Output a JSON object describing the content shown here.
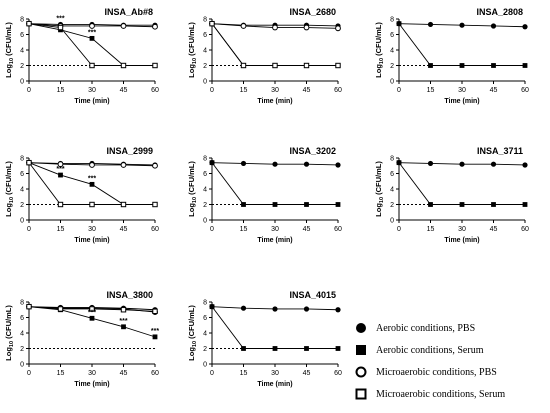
{
  "chart_data": [
    {
      "type": "line",
      "title": "INSA_Ab#8",
      "xlabel": "Time (min)",
      "ylabel": "Log10 (CFU/mL)",
      "x": [
        0,
        15,
        30,
        45,
        60
      ],
      "xlim": [
        0,
        60
      ],
      "ylim": [
        0,
        8
      ],
      "x_ticks": [
        "0",
        "15",
        "30",
        "45",
        "60"
      ],
      "y_ticks": [
        "0",
        "2",
        "4",
        "6",
        "8"
      ],
      "detection_limit": 2,
      "series": [
        {
          "values": [
            7.4,
            7.3,
            7.3,
            7.2,
            7.2
          ]
        },
        {
          "values": [
            7.4,
            6.6,
            5.5,
            2.0,
            2.0
          ]
        },
        {
          "values": [
            7.4,
            7.1,
            7.1,
            7.1,
            7.0
          ]
        },
        {
          "values": [
            7.4,
            6.9,
            2.0,
            2.0,
            2.0
          ]
        }
      ],
      "annotations": [
        {
          "x": 15,
          "y": 7.3,
          "text": "***"
        },
        {
          "x": 30,
          "y": 5.5,
          "text": "***"
        }
      ]
    },
    {
      "type": "line",
      "title": "INSA_2680",
      "xlabel": "Time (min)",
      "ylabel": "Log10 (CFU/mL)",
      "x": [
        0,
        15,
        30,
        45,
        60
      ],
      "xlim": [
        0,
        60
      ],
      "ylim": [
        0,
        8
      ],
      "x_ticks": [
        "0",
        "15",
        "30",
        "45",
        "60"
      ],
      "y_ticks": [
        "0",
        "2",
        "4",
        "6",
        "8"
      ],
      "detection_limit": 2,
      "series": [
        {
          "values": [
            7.4,
            7.2,
            7.2,
            7.2,
            7.1
          ]
        },
        {
          "values": [
            7.4,
            2.0,
            2.0,
            2.0,
            2.0
          ]
        },
        {
          "values": [
            7.4,
            7.1,
            6.9,
            6.9,
            6.8
          ]
        },
        {
          "values": [
            7.4,
            2.0,
            2.0,
            2.0,
            2.0
          ]
        }
      ],
      "annotations": []
    },
    {
      "type": "line",
      "title": "INSA_2808",
      "xlabel": "Time (min)",
      "ylabel": "Log10 (CFU/mL)",
      "x": [
        0,
        15,
        30,
        45,
        60
      ],
      "xlim": [
        0,
        60
      ],
      "ylim": [
        0,
        8
      ],
      "x_ticks": [
        "0",
        "15",
        "30",
        "45",
        "60"
      ],
      "y_ticks": [
        "0",
        "2",
        "4",
        "6",
        "8"
      ],
      "detection_limit": 2,
      "series": [
        {
          "values": [
            7.4,
            7.3,
            7.2,
            7.1,
            7.0
          ]
        },
        {
          "values": [
            7.4,
            2.0,
            2.0,
            2.0,
            2.0
          ]
        }
      ],
      "annotations": []
    },
    {
      "type": "line",
      "title": "INSA_2999",
      "xlabel": "Time (min)",
      "ylabel": "Log10 (CFU/mL)",
      "x": [
        0,
        15,
        30,
        45,
        60
      ],
      "xlim": [
        0,
        60
      ],
      "ylim": [
        0,
        8
      ],
      "x_ticks": [
        "0",
        "15",
        "30",
        "45",
        "60"
      ],
      "y_ticks": [
        "0",
        "2",
        "4",
        "6",
        "8"
      ],
      "detection_limit": 2,
      "series": [
        {
          "values": [
            7.4,
            7.3,
            7.3,
            7.2,
            7.1
          ]
        },
        {
          "values": [
            7.4,
            5.8,
            4.6,
            2.0,
            2.0
          ]
        },
        {
          "values": [
            7.4,
            7.2,
            7.1,
            7.1,
            7.0
          ]
        },
        {
          "values": [
            7.4,
            2.0,
            2.0,
            2.0,
            2.0
          ]
        }
      ],
      "annotations": [
        {
          "x": 15,
          "y": 5.8,
          "text": "***"
        },
        {
          "x": 30,
          "y": 4.6,
          "text": "***"
        }
      ]
    },
    {
      "type": "line",
      "title": "INSA_3202",
      "xlabel": "Time (min)",
      "ylabel": "Log10 (CFU/mL)",
      "x": [
        0,
        15,
        30,
        45,
        60
      ],
      "xlim": [
        0,
        60
      ],
      "ylim": [
        0,
        8
      ],
      "x_ticks": [
        "0",
        "15",
        "30",
        "45",
        "60"
      ],
      "y_ticks": [
        "0",
        "2",
        "4",
        "6",
        "8"
      ],
      "detection_limit": 2,
      "series": [
        {
          "values": [
            7.4,
            7.3,
            7.2,
            7.2,
            7.1
          ]
        },
        {
          "values": [
            7.4,
            2.0,
            2.0,
            2.0,
            2.0
          ]
        }
      ],
      "annotations": []
    },
    {
      "type": "line",
      "title": "INSA_3711",
      "xlabel": "Time (min)",
      "ylabel": "Log10 (CFU/mL)",
      "x": [
        0,
        15,
        30,
        45,
        60
      ],
      "xlim": [
        0,
        60
      ],
      "ylim": [
        0,
        8
      ],
      "x_ticks": [
        "0",
        "15",
        "30",
        "45",
        "60"
      ],
      "y_ticks": [
        "0",
        "2",
        "4",
        "6",
        "8"
      ],
      "detection_limit": 2,
      "series": [
        {
          "values": [
            7.4,
            7.3,
            7.2,
            7.2,
            7.1
          ]
        },
        {
          "values": [
            7.4,
            2.0,
            2.0,
            2.0,
            2.0
          ]
        }
      ],
      "annotations": []
    },
    {
      "type": "line",
      "title": "INSA_3800",
      "xlabel": "Time (min)",
      "ylabel": "Log10 (CFU/mL)",
      "x": [
        0,
        15,
        30,
        45,
        60
      ],
      "xlim": [
        0,
        60
      ],
      "ylim": [
        0,
        8
      ],
      "x_ticks": [
        "0",
        "15",
        "30",
        "45",
        "60"
      ],
      "y_ticks": [
        "0",
        "2",
        "4",
        "6",
        "8"
      ],
      "detection_limit": 2,
      "series": [
        {
          "values": [
            7.4,
            7.3,
            7.3,
            7.2,
            7.0
          ]
        },
        {
          "values": [
            7.4,
            7.0,
            5.9,
            4.8,
            3.5
          ]
        },
        {
          "values": [
            7.4,
            7.2,
            7.2,
            7.1,
            6.7
          ]
        },
        {
          "values": [
            7.4,
            7.1,
            7.1,
            7.0,
            6.8
          ]
        }
      ],
      "annotations": [
        {
          "x": 30,
          "y": 5.9,
          "text": "***"
        },
        {
          "x": 45,
          "y": 4.8,
          "text": "***"
        },
        {
          "x": 60,
          "y": 3.5,
          "text": "***"
        }
      ]
    },
    {
      "type": "line",
      "title": "INSA_4015",
      "xlabel": "Time (min)",
      "ylabel": "Log10 (CFU/mL)",
      "x": [
        0,
        15,
        30,
        45,
        60
      ],
      "xlim": [
        0,
        60
      ],
      "ylim": [
        0,
        8
      ],
      "x_ticks": [
        "0",
        "15",
        "30",
        "45",
        "60"
      ],
      "y_ticks": [
        "0",
        "2",
        "4",
        "6",
        "8"
      ],
      "detection_limit": 2,
      "series": [
        {
          "values": [
            7.4,
            7.2,
            7.1,
            7.1,
            7.0
          ]
        },
        {
          "values": [
            7.4,
            2.0,
            2.0,
            2.0,
            2.0
          ]
        }
      ],
      "annotations": []
    }
  ],
  "legend": {
    "items": [
      {
        "label": "Aerobic conditions, PBS",
        "marker": "filled-circle"
      },
      {
        "label": "Aerobic conditions, Serum",
        "marker": "filled-square"
      },
      {
        "label": "Microaerobic conditions, PBS",
        "marker": "open-circle"
      },
      {
        "label": "Microaerobic conditions, Serum",
        "marker": "open-square"
      }
    ]
  },
  "colors": {
    "ink": "#000000",
    "background": "#ffffff"
  }
}
